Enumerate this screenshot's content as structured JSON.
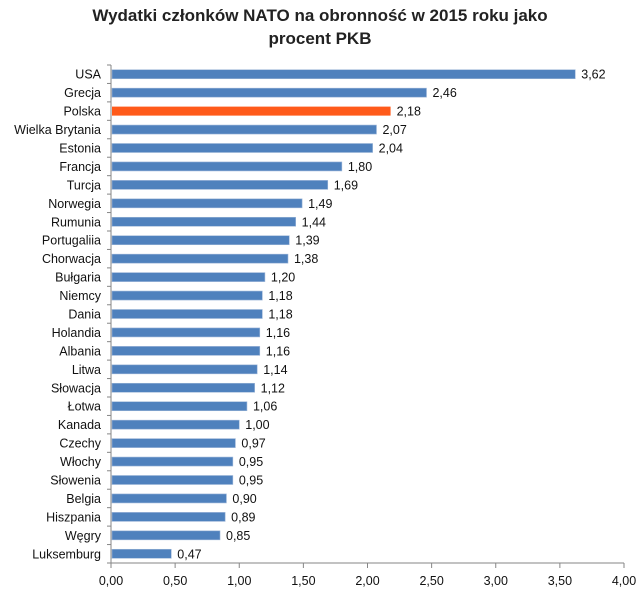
{
  "chart_data": {
    "type": "bar",
    "orientation": "horizontal",
    "title_line1": "Wydatki członków NATO na obronność w 2015 roku jako",
    "title_line2": "procent PKB",
    "xlabel": "",
    "ylabel": "",
    "xlim": [
      0,
      4
    ],
    "x_ticks": [
      "0,00",
      "0,50",
      "1,00",
      "1,50",
      "2,00",
      "2,50",
      "3,00",
      "3,50",
      "4,00"
    ],
    "grid": false,
    "legend": "none",
    "categories": [
      "USA",
      "Grecja",
      "Polska",
      "Wielka Brytania",
      "Estonia",
      "Francja",
      "Turcja",
      "Norwegia",
      "Rumunia",
      "Portugaliia",
      "Chorwacja",
      "Bułgaria",
      "Niemcy",
      "Dania",
      "Holandia",
      "Albania",
      "Litwa",
      "Słowacja",
      "Łotwa",
      "Kanada",
      "Czechy",
      "Włochy",
      "Słowenia",
      "Belgia",
      "Hiszpania",
      "Węgry",
      "Luksemburg"
    ],
    "values": [
      3.62,
      2.46,
      2.18,
      2.07,
      2.04,
      1.8,
      1.69,
      1.49,
      1.44,
      1.39,
      1.38,
      1.2,
      1.18,
      1.18,
      1.16,
      1.16,
      1.14,
      1.12,
      1.06,
      1.0,
      0.97,
      0.95,
      0.95,
      0.9,
      0.89,
      0.85,
      0.47
    ],
    "data_labels": [
      "3,62",
      "2,46",
      "2,18",
      "2,07",
      "2,04",
      "1,80",
      "1,69",
      "1,49",
      "1,44",
      "1,39",
      "1,38",
      "1,20",
      "1,18",
      "1,18",
      "1,16",
      "1,16",
      "1,14",
      "1,12",
      "1,06",
      "1,00",
      "0,97",
      "0,95",
      "0,95",
      "0,90",
      "0,89",
      "0,85",
      "0,47"
    ],
    "highlight": "Polska",
    "colors": {
      "bar": "#4F81BD",
      "highlight": "#FF5A1A",
      "axis": "#868686"
    }
  }
}
